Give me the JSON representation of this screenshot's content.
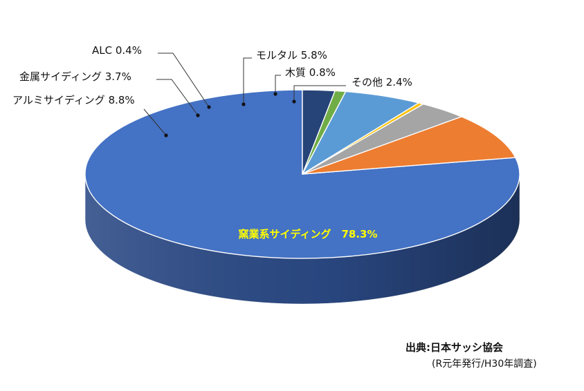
{
  "chart_data": {
    "type": "pie",
    "style": "3d",
    "slices": [
      {
        "label": "窯業系サイディング",
        "value": 78.3,
        "display": "窯業系サイディング　78.3%",
        "color": "#4472C4",
        "side_color": "#2B4A86"
      },
      {
        "label": "アルミサイディング",
        "value": 8.8,
        "display": "アルミサイディング 8.8%",
        "color": "#ED7D31",
        "side_color": "#A8561F"
      },
      {
        "label": "金属サイディング",
        "value": 3.7,
        "display": "金属サイディング 3.7%",
        "color": "#A5A5A5",
        "side_color": "#6E6E6E"
      },
      {
        "label": "ALC",
        "value": 0.4,
        "display": "ALC 0.4%",
        "color": "#FFC000",
        "side_color": "#B38600"
      },
      {
        "label": "モルタル",
        "value": 5.8,
        "display": "モルタル 5.8%",
        "color": "#5B9BD5",
        "side_color": "#3C6E9C"
      },
      {
        "label": "木質",
        "value": 0.8,
        "display": "木質 0.8%",
        "color": "#70AD47",
        "side_color": "#4C7A30"
      },
      {
        "label": "その他",
        "value": 2.4,
        "display": "その他 2.4%",
        "color": "#264478",
        "side_color": "#172A4C"
      }
    ],
    "inner_label_color": "#FFFF00"
  },
  "source": {
    "line1": "出典:日本サッシ協会",
    "line2": "(R元年発行/H30年調査)"
  }
}
